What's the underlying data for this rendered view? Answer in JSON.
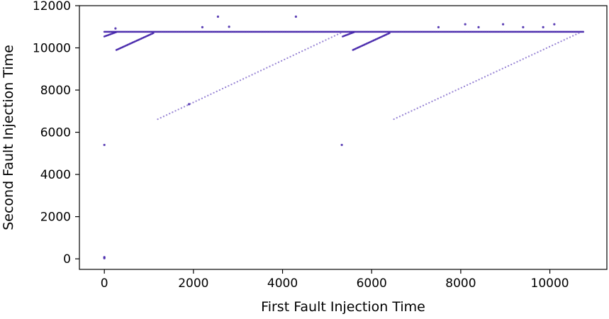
{
  "chart_data": {
    "type": "scatter",
    "title": "",
    "xlabel": "First Fault Injection Time",
    "ylabel": "Second Fault Injection Time",
    "xlim": [
      -560,
      11280
    ],
    "ylim": [
      -500,
      12000
    ],
    "xticks": [
      0,
      2000,
      4000,
      6000,
      8000,
      10000
    ],
    "yticks": [
      0,
      2000,
      4000,
      6000,
      8000,
      10000,
      12000
    ],
    "xtick_labels": [
      "0",
      "2000",
      "4000",
      "6000",
      "8000",
      "10000"
    ],
    "ytick_labels": [
      "0",
      "2000",
      "4000",
      "6000",
      "8000",
      "10000",
      "12000"
    ],
    "grid": false,
    "legend": null,
    "colors": {
      "marker_dark": "#3f1fa8",
      "marker_light": "#8e79d0",
      "axis": "#000000"
    },
    "series": [
      {
        "segments": [
          {
            "from": [
              0,
              10760
            ],
            "to": [
              10750,
              10760
            ],
            "density": "dense"
          },
          {
            "from": [
              0,
              10540
            ],
            "to": [
              260,
              10740
            ],
            "density": "dense"
          },
          {
            "from": [
              5350,
              10540
            ],
            "to": [
              5600,
              10740
            ],
            "density": "dense"
          },
          {
            "from": [
              270,
              9900
            ],
            "to": [
              1100,
              10700
            ],
            "density": "dense"
          },
          {
            "from": [
              5580,
              9900
            ],
            "to": [
              6400,
              10700
            ],
            "density": "dense"
          },
          {
            "from": [
              1200,
              6620
            ],
            "to": [
              5300,
              10700
            ],
            "density": "sparse"
          },
          {
            "from": [
              6500,
              6620
            ],
            "to": [
              10650,
              10700
            ],
            "density": "sparse"
          }
        ],
        "points": [
          {
            "x": 0,
            "y": 30
          },
          {
            "x": 0,
            "y": 80
          },
          {
            "x": 0,
            "y": 5400
          },
          {
            "x": 5330,
            "y": 5400
          },
          {
            "x": 1900,
            "y": 7330
          },
          {
            "x": 2550,
            "y": 11480
          },
          {
            "x": 4300,
            "y": 11480
          },
          {
            "x": 2200,
            "y": 10980
          },
          {
            "x": 2800,
            "y": 11000
          },
          {
            "x": 250,
            "y": 10920
          },
          {
            "x": 7500,
            "y": 10980
          },
          {
            "x": 8100,
            "y": 11120
          },
          {
            "x": 8400,
            "y": 10980
          },
          {
            "x": 8950,
            "y": 11120
          },
          {
            "x": 9400,
            "y": 10980
          },
          {
            "x": 9850,
            "y": 10980
          },
          {
            "x": 10100,
            "y": 11120
          }
        ]
      }
    ]
  }
}
